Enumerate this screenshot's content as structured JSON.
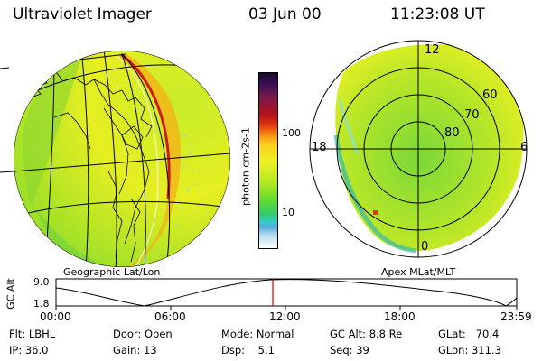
{
  "header": {
    "title": "Ultraviolet Imager",
    "date": "03 Jun 00",
    "time": "11:23:08 UT"
  },
  "left_panel": {
    "caption": "Geographic Lat/Lon"
  },
  "right_panel": {
    "caption": "Apex MLat/MLT",
    "mlt_labels": {
      "top": "12",
      "left": "18",
      "right": "6",
      "bottom": "0"
    },
    "lat_labels": [
      "60",
      "70",
      "80"
    ]
  },
  "colorbar": {
    "unit_label": "photon cm-2s-1",
    "ticks": [
      "100",
      "10"
    ],
    "colors": [
      "#1a0a2a",
      "#3a0f58",
      "#7a1a4a",
      "#b81218",
      "#e33a10",
      "#f58a10",
      "#ffd020",
      "#eef020",
      "#b6ea20",
      "#66dd30",
      "#33cc66",
      "#33cccc",
      "#55aadd",
      "#b0d8ec",
      "#ffffff"
    ]
  },
  "timeline": {
    "y_axis_label": "GC Alt",
    "y_ticks": [
      "9.0",
      "1.8"
    ],
    "x_ticks": [
      "00:00",
      "06:00",
      "12:00",
      "18:00",
      "23:59"
    ],
    "current_time_color": "#dd0000"
  },
  "info": {
    "flt": "Flt: LBHL",
    "ip": "IP: 36.0",
    "door": "Door: Open",
    "gain": "Gain: 13",
    "mode": "Mode: Normal",
    "dsp": "Dsp:    5.1",
    "gc_alt": "GC Alt: 8.8 Re",
    "seq": "Seq: 39",
    "glat": "GLat:   70.4",
    "glon": "GLon: 311.3"
  }
}
